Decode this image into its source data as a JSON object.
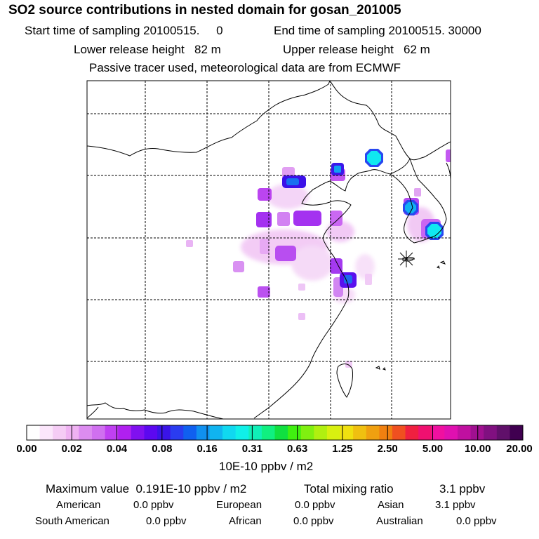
{
  "header": {
    "title": "SO2 source contributions in nested domain for gosan_201005",
    "start_label": "Start time of sampling 20100515.     0",
    "end_label": "End time of sampling 20100515. 30000",
    "lower_label": "Lower release height   82 m",
    "upper_label": "Upper release height   62 m",
    "note": "Passive tracer used, meteorological data are from ECMWF"
  },
  "chart_data": {
    "type": "heatmap",
    "title": "SO2 source contributions in nested domain for gosan_201005",
    "grid": true,
    "receptor_marker": "asterisk",
    "colorbar": {
      "ticks": [
        "0.00",
        "0.02",
        "0.04",
        "0.08",
        "0.16",
        "0.31",
        "0.63",
        "1.25",
        "2.50",
        "5.00",
        "10.00",
        "20.00"
      ],
      "unit_label": "10E-10 ppbv / m2",
      "colors": [
        "#ffffff",
        "#fbe6fb",
        "#f5ccf5",
        "#efb2f2",
        "#dc8cf0",
        "#d070f0",
        "#c040f2",
        "#b020f0",
        "#8010f0",
        "#5c08f0",
        "#3a14e8",
        "#2a3cf0",
        "#1060f0",
        "#1090f0",
        "#10b4f0",
        "#10d8f0",
        "#10f0e8",
        "#10f0b8",
        "#10f080",
        "#10e040",
        "#40f010",
        "#80f010",
        "#b0f010",
        "#d8f010",
        "#f0e010",
        "#f0c010",
        "#f0a010",
        "#f08010",
        "#f05020",
        "#f02040",
        "#f01070",
        "#f010a0",
        "#e010b0",
        "#c010a0",
        "#a01090",
        "#801080",
        "#60106a",
        "#400050"
      ],
      "color_domain_min": 0,
      "color_domain_max": 20
    },
    "footer": {
      "max_label": "Maximum value  0.191E-10 ppbv / m2",
      "total_label": "Total mixing ratio",
      "total_value": "3.1 ppbv",
      "regions": [
        {
          "name": "American",
          "value": "0.0 ppbv"
        },
        {
          "name": "European",
          "value": "0.0 ppbv"
        },
        {
          "name": "Asian",
          "value": "3.1 ppbv"
        },
        {
          "name": "South American",
          "value": "0.0 ppbv"
        },
        {
          "name": "African",
          "value": "0.0 ppbv"
        },
        {
          "name": "Australian",
          "value": "0.0 ppbv"
        }
      ]
    }
  }
}
